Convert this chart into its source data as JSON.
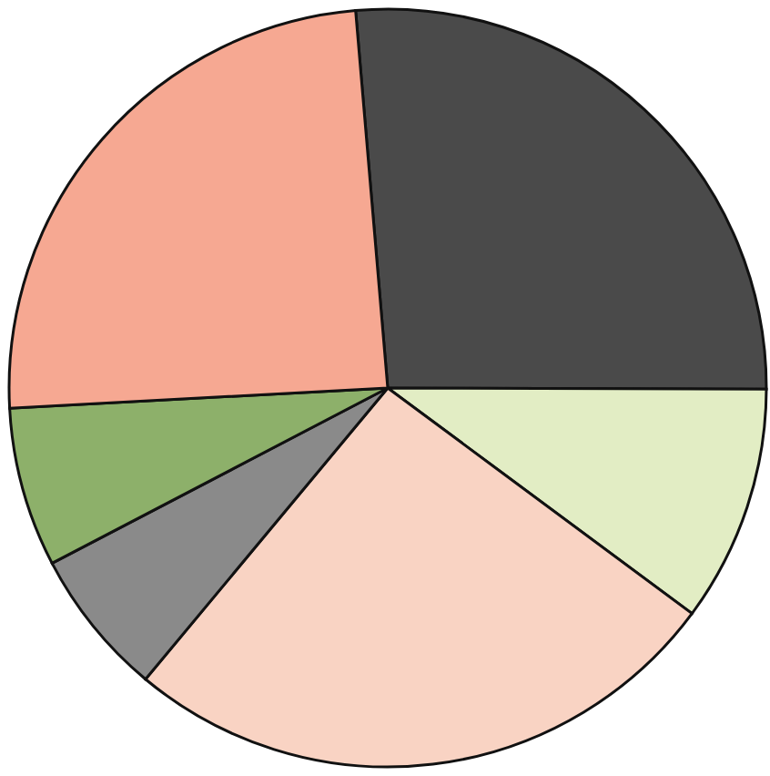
{
  "chart_data": {
    "type": "pie",
    "categories": [
      null,
      null,
      null,
      null,
      null,
      null
    ],
    "values": [
      26.4,
      10.1,
      25.9,
      6.3,
      6.8,
      24.5
    ],
    "colors": [
      "#4a4a4a",
      "#e2edc4",
      "#f9d3c3",
      "#8a8a8a",
      "#8db06a",
      "#f6a892"
    ]
  }
}
